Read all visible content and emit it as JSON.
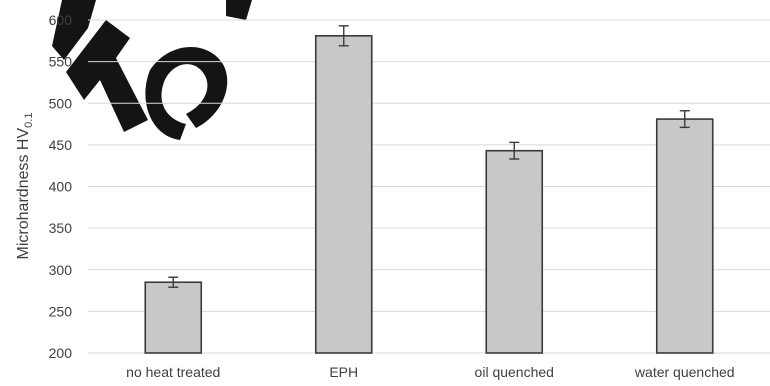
{
  "chart_data": {
    "type": "bar",
    "title": "",
    "xlabel": "",
    "ylabel": "Microhardness HV",
    "ylabel_subscript": "0.1",
    "categories": [
      "no heat treated",
      "EPH",
      "oil quenched",
      "water quenched"
    ],
    "values": [
      285,
      581,
      443,
      481
    ],
    "error": [
      6,
      12,
      10,
      10
    ],
    "ylim": [
      200,
      600
    ],
    "yticks": [
      200,
      250,
      300,
      350,
      400,
      450,
      500,
      550,
      600
    ],
    "grid": true,
    "legend": "none",
    "colors": {
      "bar_fill": "#c8c8c8",
      "bar_stroke": "#3a3a3a",
      "grid": "#d9d9d9",
      "text": "#404040"
    }
  }
}
